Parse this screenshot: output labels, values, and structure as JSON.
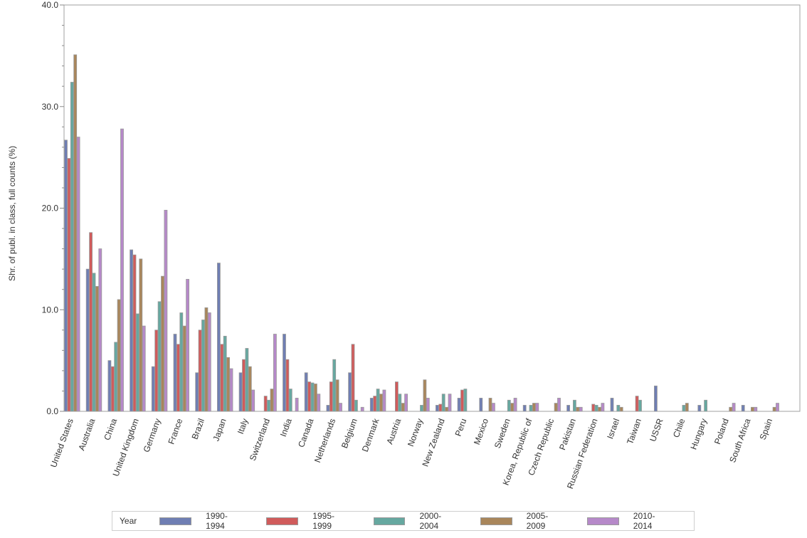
{
  "chart_data": {
    "type": "bar",
    "title": "",
    "xlabel": "",
    "ylabel": "Shr. of publ. in class, full counts (%)",
    "ylim": [
      0,
      40
    ],
    "yticks": [
      "0.0",
      "10.0",
      "20.0",
      "30.0",
      "40.0"
    ],
    "grid": false,
    "legend_position": "bottom",
    "legend_title": "Year",
    "categories": [
      "United States",
      "Australia",
      "China",
      "United Kingdom",
      "Germany",
      "France",
      "Brazil",
      "Japan",
      "Italy",
      "Switzerland",
      "India",
      "Canada",
      "Netherlands",
      "Belgium",
      "Denmark",
      "Austria",
      "Norway",
      "New Zealand",
      "Peru",
      "Mexico",
      "Sweden",
      "Korea, Republic of",
      "Czech Republic",
      "Pakistan",
      "Russian Federation",
      "Israel",
      "Taiwan",
      "USSR",
      "Chile",
      "Hungary",
      "Poland",
      "South Africa",
      "Spain"
    ],
    "series": [
      {
        "name": "1990-1994",
        "color": "#6F7EB3",
        "values": [
          26.7,
          14.0,
          5.0,
          15.9,
          4.4,
          7.6,
          3.8,
          14.6,
          3.8,
          0,
          7.6,
          3.8,
          0.6,
          3.8,
          1.3,
          0,
          0,
          0.6,
          1.3,
          1.3,
          0,
          0.6,
          0,
          0.6,
          0,
          1.3,
          0,
          2.5,
          0,
          0.6,
          0,
          0.6,
          0
        ]
      },
      {
        "name": "1995-1999",
        "color": "#D05B5B",
        "values": [
          24.9,
          17.6,
          4.4,
          15.4,
          8.0,
          6.6,
          8.0,
          6.6,
          5.1,
          1.5,
          5.1,
          2.9,
          2.9,
          6.6,
          1.5,
          2.9,
          0,
          0.7,
          2.1,
          0,
          0,
          0,
          0,
          0,
          0.7,
          0,
          1.5,
          0,
          0,
          0,
          0,
          0,
          0
        ]
      },
      {
        "name": "2000-2004",
        "color": "#66A8A0",
        "values": [
          32.4,
          13.6,
          6.8,
          9.6,
          10.8,
          9.7,
          9.0,
          7.4,
          6.2,
          1.1,
          2.2,
          2.8,
          5.1,
          1.1,
          2.2,
          1.7,
          0.6,
          1.7,
          2.2,
          0,
          1.1,
          0.6,
          0,
          1.1,
          0.6,
          0.6,
          1.1,
          0,
          0.6,
          1.1,
          0,
          0,
          0
        ]
      },
      {
        "name": "2005-2009",
        "color": "#A9865B",
        "values": [
          35.1,
          12.3,
          11.0,
          15.0,
          13.3,
          8.4,
          10.2,
          5.3,
          4.4,
          2.2,
          0,
          2.7,
          3.1,
          0,
          1.7,
          0.8,
          3.1,
          0.4,
          0,
          1.3,
          0.8,
          0.8,
          0.8,
          0.4,
          0.4,
          0.4,
          0,
          0,
          0.8,
          0,
          0.4,
          0.4,
          0.4
        ]
      },
      {
        "name": "2010-2014",
        "color": "#B689C9",
        "values": [
          27.0,
          16.0,
          27.8,
          8.4,
          19.8,
          13.0,
          9.7,
          4.2,
          2.1,
          7.6,
          1.3,
          1.7,
          0.8,
          0.4,
          2.1,
          1.7,
          1.3,
          1.7,
          0,
          0.8,
          1.3,
          0.8,
          1.3,
          0.4,
          0.8,
          0,
          0,
          0,
          0,
          0,
          0.8,
          0.4,
          0.8
        ]
      }
    ]
  },
  "legend": {
    "title": "Year",
    "items": [
      {
        "label": "1990-1994",
        "color": "#6F7EB3"
      },
      {
        "label": "1995-1999",
        "color": "#D05B5B"
      },
      {
        "label": "2000-2004",
        "color": "#66A8A0"
      },
      {
        "label": "2005-2009",
        "color": "#A9865B"
      },
      {
        "label": "2010-2014",
        "color": "#B689C9"
      }
    ]
  }
}
